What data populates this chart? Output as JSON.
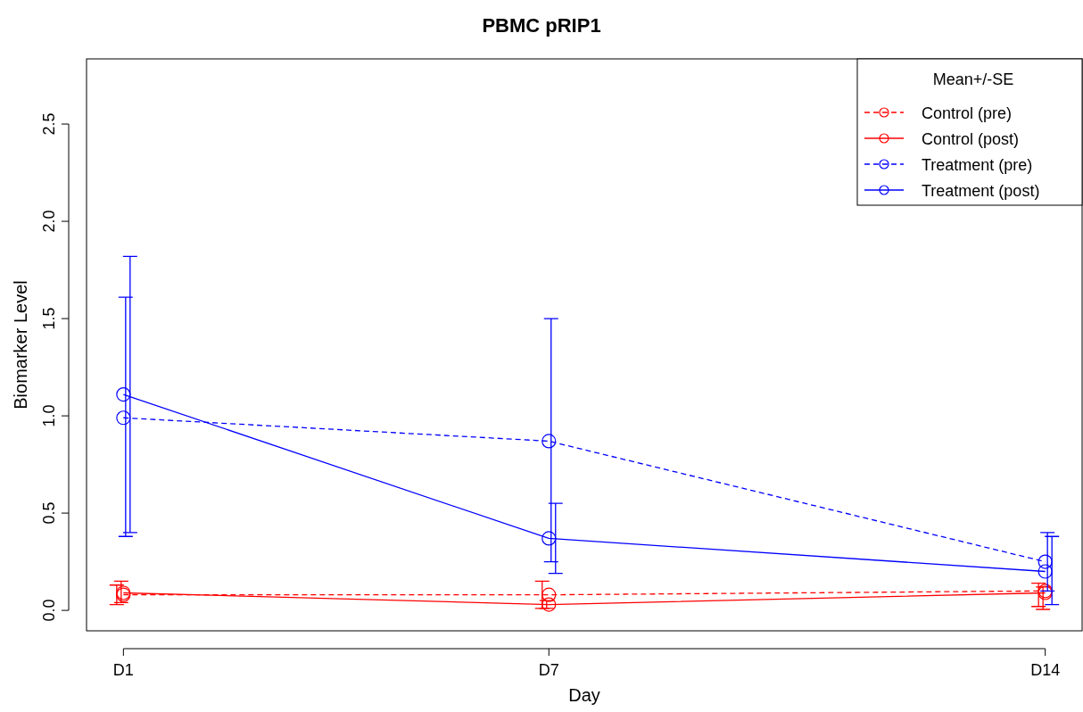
{
  "chart_data": {
    "type": "line",
    "title": "PBMC pRIP1",
    "xlabel": "Day",
    "ylabel": "Biomarker Level",
    "legend_title": "Mean+/-SE",
    "categories": [
      "D1",
      null,
      null,
      null,
      null,
      null,
      "D7",
      null,
      null,
      null,
      null,
      null,
      null,
      "D14"
    ],
    "ylim": [
      -0.105,
      2.835
    ],
    "yticks": [
      {
        "value": 0,
        "label": "0.0"
      },
      {
        "value": 0.5,
        "label": "0.5"
      },
      {
        "value": 1,
        "label": "1.0"
      },
      {
        "value": 1.5,
        "label": "1.5"
      },
      {
        "value": 2,
        "label": "2.0"
      },
      {
        "value": 2.5,
        "label": "2.5"
      }
    ],
    "series": [
      {
        "name": "Control (pre)",
        "color": "#ff0000",
        "line_style": "dashed",
        "values": [
          0.08,
          null,
          null,
          null,
          null,
          null,
          0.08,
          null,
          null,
          null,
          null,
          null,
          null,
          0.1
        ],
        "errors": [
          [
            0.03,
            0.13
          ],
          null,
          null,
          null,
          null,
          null,
          [
            0.01,
            0.15
          ],
          null,
          null,
          null,
          null,
          null,
          null,
          [
            0.02,
            0.14
          ]
        ]
      },
      {
        "name": "Control (post)",
        "color": "#ff0000",
        "line_style": "solid",
        "values": [
          0.09,
          null,
          null,
          null,
          null,
          null,
          0.03,
          null,
          null,
          null,
          null,
          null,
          null,
          0.09
        ],
        "errors": [
          [
            0.04,
            0.15
          ],
          null,
          null,
          null,
          null,
          null,
          [
            0.01,
            0.05
          ],
          null,
          null,
          null,
          null,
          null,
          null,
          [
            0.005,
            0.12
          ]
        ]
      },
      {
        "name": "Treatment (pre)",
        "color": "#0000ff",
        "line_style": "dashed",
        "values": [
          0.99,
          null,
          null,
          null,
          null,
          null,
          0.87,
          null,
          null,
          null,
          null,
          null,
          null,
          0.25
        ],
        "errors": [
          [
            0.38,
            1.61
          ],
          null,
          null,
          null,
          null,
          null,
          [
            0.25,
            1.5
          ],
          null,
          null,
          null,
          null,
          null,
          null,
          [
            0.1,
            0.4
          ]
        ]
      },
      {
        "name": "Treatment (post)",
        "color": "#0000ff",
        "line_style": "solid",
        "values": [
          1.11,
          null,
          null,
          null,
          null,
          null,
          0.37,
          null,
          null,
          null,
          null,
          null,
          null,
          0.2
        ],
        "errors": [
          [
            0.4,
            1.82
          ],
          null,
          null,
          null,
          null,
          null,
          [
            0.19,
            0.55
          ],
          null,
          null,
          null,
          null,
          null,
          null,
          [
            0.03,
            0.38
          ]
        ]
      }
    ],
    "marker": "circle",
    "grid": false,
    "legend": "top right"
  }
}
